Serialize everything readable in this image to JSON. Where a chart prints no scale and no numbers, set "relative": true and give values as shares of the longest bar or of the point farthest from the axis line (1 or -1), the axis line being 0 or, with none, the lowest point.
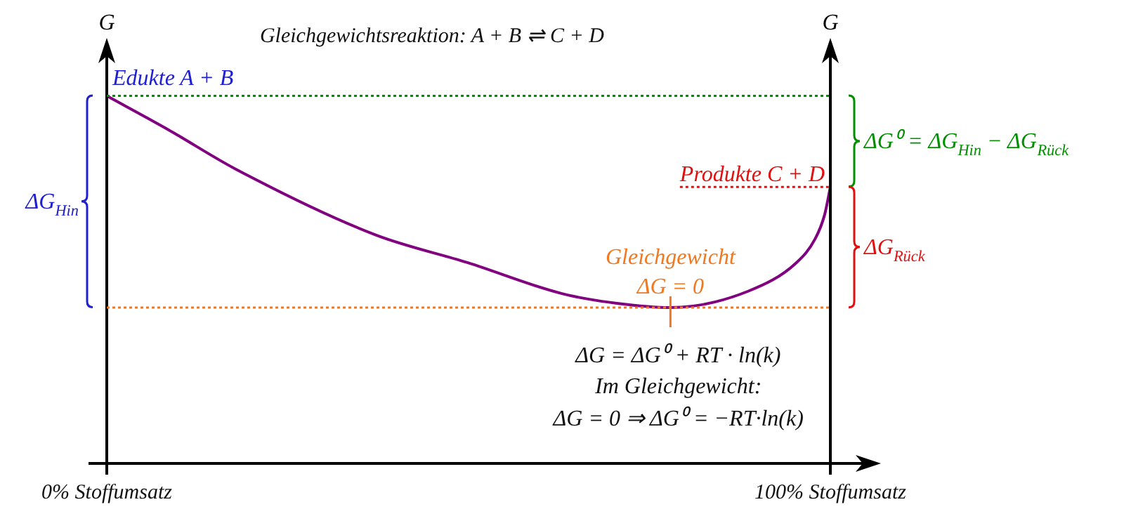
{
  "chart_data": {
    "type": "line",
    "title": "Gleichgewichtsreaktion: A + B ⇌ C + D",
    "ylabel": "G",
    "y2label": "G",
    "relative": true,
    "marker": "none",
    "legend": false,
    "x": [
      0,
      8.5,
      17.7,
      37.1,
      49.9,
      62.9,
      70.7,
      77.9,
      88.7,
      95.3,
      97.9,
      99.2,
      100
    ],
    "xlim": [
      0,
      100
    ],
    "xticks": [
      {
        "value": 0,
        "label": "0% Stoffumsatz"
      },
      {
        "value": 100,
        "label": "100% Stoffumsatz"
      }
    ],
    "series": [
      {
        "color": "#800080",
        "values": [
          1,
          0.908,
          0.802,
          0.622,
          0.546,
          0.462,
          0.435,
          0.424,
          0.469,
          0.546,
          0.611,
          0.676,
          0.752
        ]
      }
    ],
    "ref_lines": [
      {
        "axis": "y",
        "value": 1,
        "color": "#009000",
        "line_style": "dotted"
      },
      {
        "axis": "y",
        "value": 0.752,
        "label": "Produkte C + D",
        "color": "#e01010",
        "line_style": "dotted"
      },
      {
        "axis": "y",
        "value": 0.424,
        "color": "#f07820",
        "line_style": "dotted"
      }
    ],
    "annotations": [
      {
        "text": "Edukte A + B",
        "x": 0,
        "y": 1
      },
      "ΔG$_{Hin}$",
      "ΔG⁰ = ΔG$_{Hin}$ − ΔG$_{Rück}$",
      "ΔG$_{Rück}$",
      {
        "text": "Gleichgewicht\nΔG = 0",
        "x": 77.9,
        "y": 0.424
      },
      "ΔG = ΔG⁰ + RT · ln(k)",
      "Im Gleichgewicht:",
      "ΔG = 0 ⇒ ΔG⁰ = −RT·ln(k)"
    ]
  }
}
